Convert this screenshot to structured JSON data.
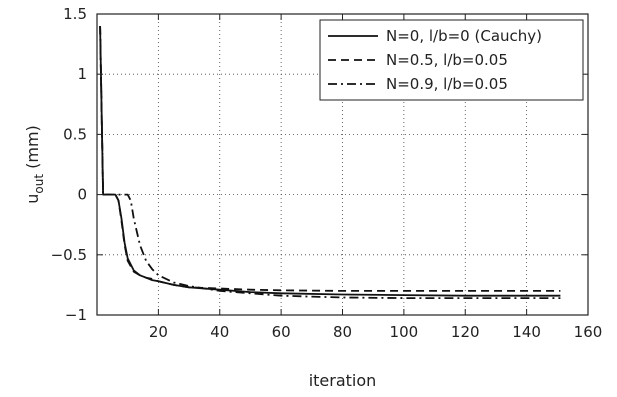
{
  "chart_data": {
    "type": "line",
    "title": "",
    "xlabel": "iteration",
    "ylabel": "u",
    "ylabel_subscript": "out",
    "ylabel_unit": " (mm)",
    "xlim": [
      0,
      160
    ],
    "ylim": [
      -1,
      1.5
    ],
    "xticks": [
      20,
      40,
      60,
      80,
      100,
      120,
      140,
      160
    ],
    "xtick_labels": [
      "20",
      "40",
      "60",
      "80",
      "100",
      "120",
      "140",
      "160"
    ],
    "yticks": [
      -1,
      -0.5,
      0,
      0.5,
      1,
      1.5
    ],
    "ytick_labels": [
      "−1",
      "−0.5",
      "0",
      "0.5",
      "1",
      "1.5"
    ],
    "grid": true,
    "legend_position": "top-right",
    "series": [
      {
        "name": "N=0, l/b=0 (Cauchy)",
        "style": "solid",
        "color": "#111111",
        "x": [
          1,
          2,
          3,
          4,
          5,
          6,
          7,
          8,
          9,
          10,
          12,
          14,
          16,
          18,
          20,
          25,
          30,
          40,
          50,
          60,
          80,
          100,
          120,
          140,
          151
        ],
        "y": [
          1.4,
          0.0,
          0.0,
          0.0,
          0.0,
          0.0,
          -0.05,
          -0.2,
          -0.4,
          -0.53,
          -0.63,
          -0.67,
          -0.69,
          -0.71,
          -0.72,
          -0.75,
          -0.77,
          -0.79,
          -0.81,
          -0.82,
          -0.83,
          -0.835,
          -0.84,
          -0.84,
          -0.84
        ]
      },
      {
        "name": "N=0.5, l/b=0.05",
        "style": "dashed",
        "color": "#111111",
        "x": [
          1,
          2,
          3,
          4,
          5,
          6,
          7,
          8,
          9,
          10,
          12,
          14,
          16,
          18,
          20,
          25,
          30,
          40,
          50,
          60,
          80,
          100,
          120,
          140,
          151
        ],
        "y": [
          1.4,
          0.0,
          0.0,
          0.0,
          0.0,
          0.0,
          -0.05,
          -0.22,
          -0.42,
          -0.55,
          -0.64,
          -0.67,
          -0.69,
          -0.7,
          -0.72,
          -0.75,
          -0.77,
          -0.78,
          -0.79,
          -0.795,
          -0.8,
          -0.8,
          -0.8,
          -0.8,
          -0.8
        ]
      },
      {
        "name": "N=0.9, l/b=0.05",
        "style": "dashdot",
        "color": "#111111",
        "x": [
          1,
          2,
          3,
          4,
          5,
          6,
          7,
          8,
          9,
          10,
          11,
          12,
          14,
          16,
          18,
          20,
          25,
          30,
          40,
          50,
          60,
          80,
          100,
          120,
          140,
          151
        ],
        "y": [
          1.4,
          0.0,
          0.0,
          0.0,
          0.0,
          0.0,
          0.0,
          0.0,
          0.0,
          0.0,
          -0.05,
          -0.2,
          -0.42,
          -0.55,
          -0.62,
          -0.67,
          -0.73,
          -0.76,
          -0.8,
          -0.82,
          -0.84,
          -0.855,
          -0.86,
          -0.86,
          -0.86,
          -0.86
        ]
      }
    ]
  }
}
